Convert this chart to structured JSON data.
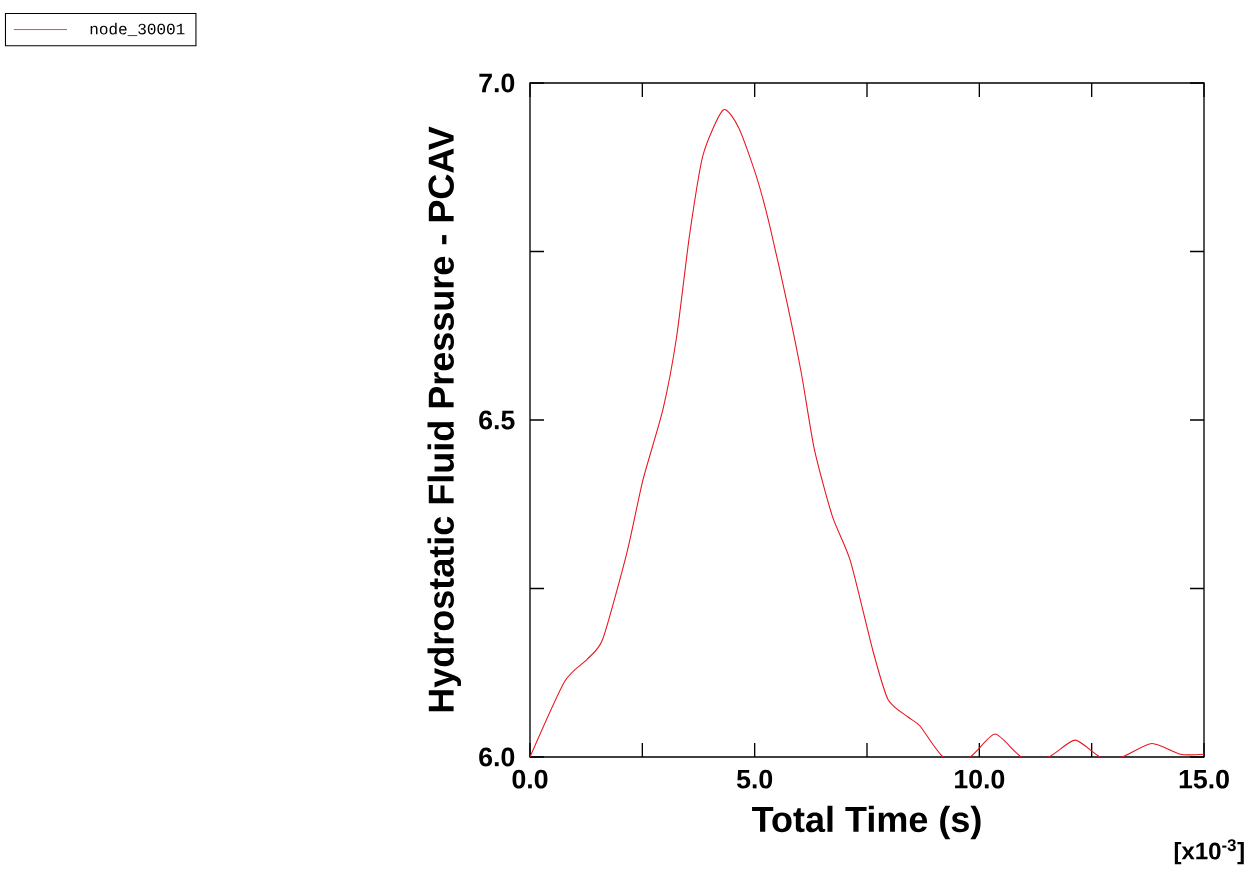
{
  "chart_data": {
    "type": "line",
    "xlabel": "Total Time  (s)",
    "ylabel": "Hydrostatic Fluid Pressure - PCAV",
    "annotations": [
      "[x10$^{-3}$]"
    ],
    "xlim": [
      0,
      15
    ],
    "ylim": [
      6.0,
      7.0
    ],
    "xticks": [
      {
        "value": 0,
        "label": "0.0"
      },
      {
        "value": 2.5,
        "label": null
      },
      {
        "value": 5,
        "label": "5.0"
      },
      {
        "value": 7.5,
        "label": null
      },
      {
        "value": 10,
        "label": "10.0"
      },
      {
        "value": 12.5,
        "label": null
      },
      {
        "value": 15,
        "label": "15.0"
      }
    ],
    "yticks": [
      {
        "value": 6.0,
        "label": "6.0"
      },
      {
        "value": 6.25,
        "label": null
      },
      {
        "value": 6.5,
        "label": "6.5"
      },
      {
        "value": 6.75,
        "label": null
      },
      {
        "value": 7.0,
        "label": "7.0"
      }
    ],
    "grid": false,
    "legend": "top left",
    "marker": "none",
    "line_style": "solid",
    "series": [
      {
        "name": "node_30001",
        "color": "#e8141e",
        "x": [
          0,
          0.77,
          1.27,
          1.62,
          2.16,
          2.51,
          2.96,
          3.26,
          3.55,
          3.85,
          4.3,
          4.65,
          5.04,
          5.34,
          5.74,
          6.04,
          6.33,
          6.73,
          7.13,
          7.63,
          7.97,
          8.42,
          8.68,
          9.2,
          9.79,
          10.35,
          10.94,
          11.54,
          12.13,
          12.69,
          13.17,
          13.84,
          14.47,
          15.0
        ],
        "values": [
          6.0,
          6.112,
          6.145,
          6.175,
          6.304,
          6.41,
          6.516,
          6.622,
          6.774,
          6.893,
          6.96,
          6.933,
          6.861,
          6.787,
          6.668,
          6.569,
          6.456,
          6.357,
          6.291,
          6.158,
          6.085,
          6.059,
          6.046,
          6.0,
          6.0,
          6.034,
          6.0,
          6.0,
          6.025,
          6.0,
          6.0,
          6.02,
          6.004,
          6.004
        ]
      }
    ]
  }
}
